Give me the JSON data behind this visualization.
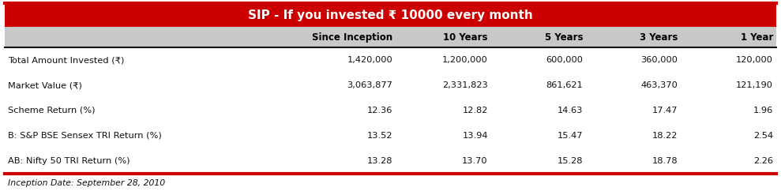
{
  "title": "SIP - If you invested ₹ 10000 every month",
  "title_bg": "#cc0000",
  "title_color": "#ffffff",
  "header_bg": "#c8c8c8",
  "header_color": "#000000",
  "columns": [
    "Since Inception",
    "10 Years",
    "5 Years",
    "3 Years",
    "1 Year"
  ],
  "rows": [
    {
      "label": "Total Amount Invested (₹)",
      "values": [
        "1,420,000",
        "1,200,000",
        "600,000",
        "360,000",
        "120,000"
      ]
    },
    {
      "label": "Market Value (₹)",
      "values": [
        "3,063,877",
        "2,331,823",
        "861,621",
        "463,370",
        "121,190"
      ]
    },
    {
      "label": "Scheme Return (%)",
      "values": [
        "12.36",
        "12.82",
        "14.63",
        "17.47",
        "1.96"
      ]
    },
    {
      "label": "B: S&P BSE Sensex TRI Return (%)",
      "values": [
        "13.52",
        "13.94",
        "15.47",
        "18.22",
        "2.54"
      ]
    },
    {
      "label": "AB: Nifty 50 TRI Return (%)",
      "values": [
        "13.28",
        "13.70",
        "15.28",
        "18.78",
        "2.26"
      ]
    }
  ],
  "footer_text": "Inception Date: September 28, 2010",
  "border_color": "#cc0000",
  "separator_color": "#111111",
  "fig_width": 9.89,
  "fig_height": 2.47,
  "dpi": 100
}
